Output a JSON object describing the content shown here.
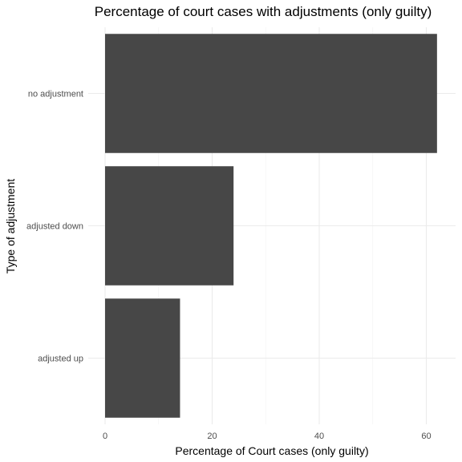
{
  "chart_data": {
    "type": "bar",
    "orientation": "horizontal",
    "title": "Percentage of court cases with adjustments (only guilty)",
    "xlabel": "Percentage of Court cases (only guilty)",
    "ylabel": "Type of adjustment",
    "categories": [
      "no adjustment",
      "adjusted down",
      "adjusted up"
    ],
    "values": [
      62,
      24,
      14
    ],
    "xlim": [
      0,
      65
    ],
    "xticks": [
      0,
      20,
      40,
      60
    ],
    "grid": true,
    "legend": "none",
    "bar_color": "#474747"
  }
}
